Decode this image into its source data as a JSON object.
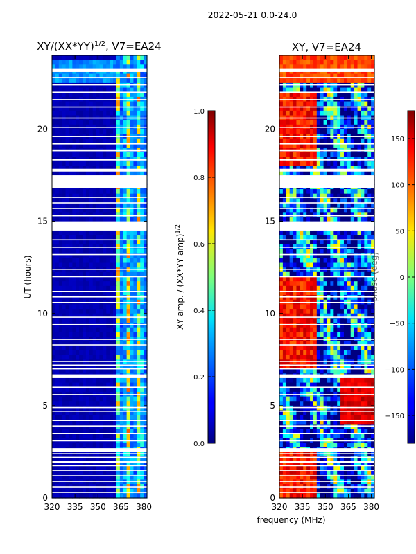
{
  "suptitle": "2022-05-21 0.0-24.0",
  "xlabel": "frequency (MHz)",
  "chart_data": [
    {
      "type": "heatmap",
      "title": "XY/(XX*YY)",
      "title_sup": "1/2",
      "title_suffix": ", V7=EA24",
      "ylabel": "UT (hours)",
      "xlim": [
        320,
        382
      ],
      "ylim": [
        0,
        24
      ],
      "xticks": [
        320,
        335,
        350,
        365,
        380
      ],
      "yticks": [
        0,
        5,
        10,
        15,
        20
      ],
      "colorbar": {
        "label": "XY amp. / (XX*YY amp)",
        "label_sup": "1/2",
        "range": [
          0.0,
          1.0
        ],
        "ticks": [
          "0.0",
          "0.2",
          "0.4",
          "0.6",
          "0.8",
          "1.0"
        ],
        "tick_values": [
          0.0,
          0.2,
          0.4,
          0.6,
          0.8,
          1.0
        ]
      },
      "gaps_hours": [
        [
          14.5,
          15.0
        ],
        [
          16.8,
          17.5
        ],
        [
          6.5,
          6.7
        ],
        [
          2.5,
          2.7
        ],
        [
          1.9,
          2.0
        ],
        [
          23.1,
          23.3
        ],
        [
          17.7,
          17.85
        ],
        [
          18.3,
          18.4
        ],
        [
          18.8,
          18.9
        ]
      ],
      "flagged_lines_hours": [
        0.3,
        0.6,
        0.9,
        1.2,
        1.5,
        1.75,
        2.2,
        2.4,
        3.1,
        3.5,
        3.9,
        4.2,
        4.7,
        4.9,
        5.6,
        6.0,
        7.0,
        7.2,
        7.4,
        8.3,
        8.6,
        9.4,
        9.8,
        10.6,
        10.9,
        11.2,
        12.0,
        12.4,
        13.2,
        13.6,
        14.0,
        15.3,
        15.7,
        16.0,
        16.3,
        17.0,
        19.2,
        19.6,
        20.1,
        20.6,
        21.2,
        21.6,
        22.0,
        22.4,
        22.8
      ],
      "notes": "Low amplitude (~0.05) across 320-360 MHz, bright streaks (0.4-0.8) near 362-382 MHz"
    },
    {
      "type": "heatmap",
      "title": "XY, V7=EA24",
      "ylabel": "",
      "xlim": [
        320,
        382
      ],
      "ylim": [
        0,
        24
      ],
      "xticks": [
        320,
        335,
        350,
        365,
        380
      ],
      "yticks": [
        0,
        5,
        10,
        15,
        20
      ],
      "colorbar": {
        "label": "phase (deg)",
        "range": [
          -180,
          180
        ],
        "ticks": [
          "150",
          "100",
          "50",
          "0",
          "−50",
          "−100",
          "−150"
        ],
        "tick_values": [
          150,
          100,
          50,
          0,
          -50,
          -100,
          -150
        ]
      },
      "gaps_hours": [
        [
          14.5,
          15.0
        ],
        [
          16.8,
          17.5
        ],
        [
          6.5,
          6.7
        ],
        [
          2.5,
          2.7
        ],
        [
          1.9,
          2.0
        ],
        [
          23.1,
          23.3
        ],
        [
          17.7,
          17.85
        ],
        [
          18.3,
          18.4
        ],
        [
          18.8,
          18.9
        ]
      ],
      "flagged_lines_hours": [
        0.3,
        0.6,
        0.9,
        1.2,
        1.5,
        1.75,
        2.2,
        2.4,
        3.1,
        3.5,
        3.9,
        4.2,
        4.7,
        4.9,
        5.6,
        6.0,
        7.0,
        7.2,
        7.4,
        8.3,
        8.6,
        9.4,
        9.8,
        10.6,
        10.9,
        11.2,
        12.0,
        12.4,
        13.2,
        13.6,
        14.0,
        15.3,
        15.7,
        16.0,
        16.3,
        17.0,
        19.2,
        19.6,
        20.1,
        20.6,
        21.2,
        21.6,
        22.0,
        22.4,
        22.8
      ],
      "notes": "Wrapped phase across full range, positive (~100-150 deg) near 330-345 MHz, mixed elsewhere"
    }
  ]
}
